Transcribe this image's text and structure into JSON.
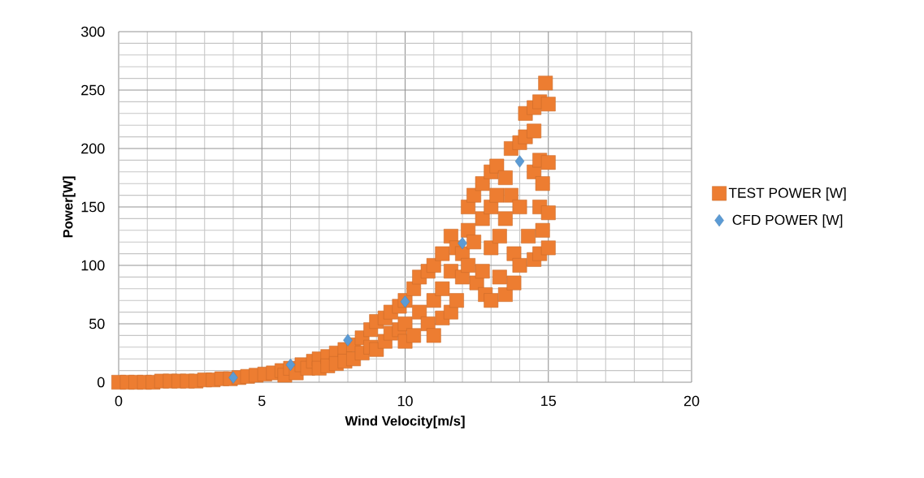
{
  "chart_data": {
    "type": "scatter",
    "xlabel": "Wind Velocity[m/s]",
    "ylabel": "Power[W]",
    "xlim": [
      0,
      20
    ],
    "xticks": [
      0,
      5,
      10,
      15,
      20
    ],
    "ylim": [
      0,
      300
    ],
    "yticks": [
      0,
      50,
      100,
      150,
      200,
      250,
      300
    ],
    "grid": true,
    "legend": "right",
    "series": [
      {
        "name": "TEST POWER [W]",
        "color": "#ed7d31",
        "marker": "square",
        "x": [
          0,
          0.3,
          0.6,
          0.9,
          1.2,
          1.5,
          1.8,
          2.1,
          2.4,
          2.7,
          3,
          3.3,
          3.6,
          3.9,
          4.2,
          4.5,
          4.8,
          5.1,
          5.4,
          5.7,
          5.8,
          6,
          6.2,
          6.4,
          6.6,
          6.8,
          7,
          7,
          7.3,
          7.3,
          7.6,
          7.6,
          7.9,
          7.9,
          8.2,
          8.2,
          8.5,
          8.5,
          8.8,
          8.8,
          9,
          9,
          9.3,
          9.3,
          9.5,
          9.5,
          9.8,
          9.8,
          10,
          10,
          10,
          10.3,
          10.3,
          10.5,
          10.5,
          10.8,
          10.8,
          11,
          11,
          11,
          11.3,
          11.3,
          11.3,
          11.6,
          11.6,
          11.6,
          11.8,
          11.8,
          12,
          12,
          12.2,
          12.2,
          12.2,
          12.4,
          12.4,
          12.5,
          12.7,
          12.7,
          12.7,
          12.8,
          13,
          13,
          13,
          13,
          13.2,
          13.2,
          13.3,
          13.3,
          13.5,
          13.5,
          13.5,
          13.7,
          13.7,
          13.8,
          13.8,
          14,
          14,
          14,
          14.2,
          14.2,
          14.3,
          14.5,
          14.5,
          14.5,
          14.5,
          14.7,
          14.7,
          14.7,
          14.7,
          14.8,
          14.8,
          14.9,
          15,
          15,
          15,
          15
        ],
        "values": [
          0,
          0,
          0,
          0,
          0,
          1,
          1,
          1,
          1,
          1,
          2,
          2,
          3,
          3,
          4,
          5,
          6,
          7,
          8,
          10,
          6,
          12,
          8,
          15,
          12,
          18,
          20,
          12,
          22,
          14,
          25,
          16,
          28,
          18,
          32,
          20,
          38,
          25,
          45,
          30,
          52,
          28,
          55,
          35,
          60,
          42,
          65,
          45,
          70,
          50,
          35,
          80,
          40,
          90,
          60,
          95,
          50,
          100,
          70,
          40,
          110,
          80,
          55,
          125,
          95,
          60,
          115,
          70,
          110,
          90,
          150,
          130,
          100,
          160,
          120,
          85,
          170,
          140,
          95,
          75,
          180,
          150,
          115,
          70,
          185,
          160,
          125,
          90,
          175,
          140,
          75,
          200,
          160,
          110,
          85,
          205,
          150,
          100,
          230,
          210,
          125,
          235,
          215,
          180,
          105,
          240,
          190,
          150,
          110,
          170,
          130,
          256,
          238,
          188,
          145,
          115
        ]
      },
      {
        "name": "CFD POWER [W]",
        "color": "#5b9bd5",
        "marker": "diamond",
        "x": [
          4,
          6,
          8,
          10,
          12,
          14
        ],
        "values": [
          4,
          15,
          36,
          69,
          119,
          189
        ]
      }
    ]
  }
}
